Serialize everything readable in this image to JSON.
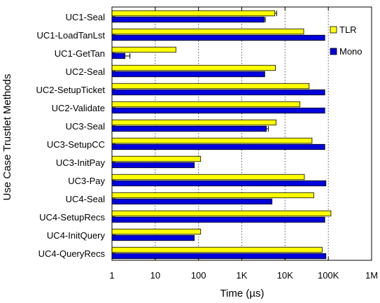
{
  "chart_data": {
    "type": "bar",
    "orientation": "horizontal",
    "xlabel": "Time (µs)",
    "ylabel": "Use Case Trustlet Methods",
    "x_scale": "log",
    "xlim": [
      1,
      1000000
    ],
    "x_ticks": [
      {
        "value": 1,
        "label": "1"
      },
      {
        "value": 10,
        "label": "10"
      },
      {
        "value": 100,
        "label": "100"
      },
      {
        "value": 1000,
        "label": "1K"
      },
      {
        "value": 10000,
        "label": "10K"
      },
      {
        "value": 100000,
        "label": "100K"
      },
      {
        "value": 1000000,
        "label": "1M"
      }
    ],
    "grid": "vertical dotted",
    "legend_position": "top-right",
    "categories": [
      "UC1-Seal",
      "UC1-LoadTanLst",
      "UC1-GetTan",
      "UC2-Seal",
      "UC2-SetupTicket",
      "UC2-Validate",
      "UC3-Seal",
      "UC3-SetupCC",
      "UC3-InitPay",
      "UC3-Pay",
      "UC4-Seal",
      "UC4-SetupRecs",
      "UC4-InitQuery",
      "UC4-QueryRecs"
    ],
    "series": [
      {
        "name": "TLR",
        "color": "#ffff00",
        "values": [
          5800,
          27000,
          30,
          6000,
          36000,
          22000,
          6200,
          42000,
          112,
          28000,
          46000,
          115000,
          112,
          72000
        ],
        "error": [
          6400,
          null,
          null,
          null,
          null,
          null,
          null,
          null,
          null,
          null,
          null,
          null,
          null,
          null
        ]
      },
      {
        "name": "Mono",
        "color": "#0000dd",
        "values": [
          3300,
          83000,
          2,
          3400,
          83000,
          83000,
          3700,
          83000,
          80,
          88000,
          5000,
          83000,
          80,
          88000
        ],
        "error": [
          3500,
          null,
          2.6,
          null,
          null,
          null,
          4100,
          null,
          null,
          null,
          null,
          null,
          null,
          null
        ]
      }
    ]
  }
}
